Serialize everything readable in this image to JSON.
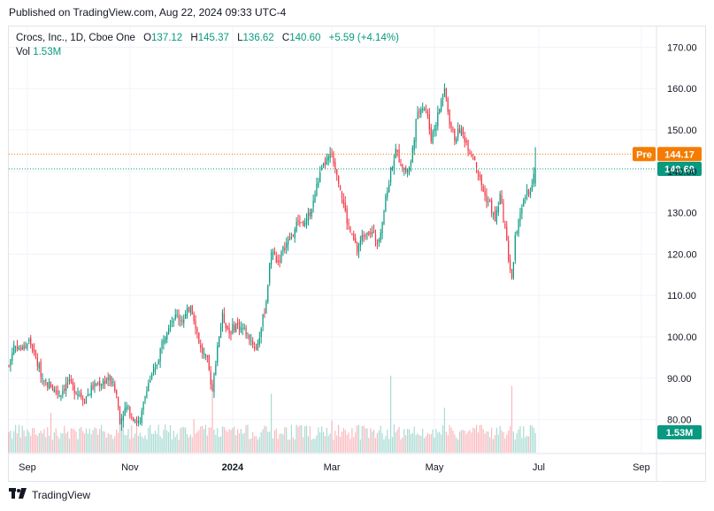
{
  "published": "Published on TradingView.com, Aug 22, 2024 09:33 UTC-4",
  "legend": {
    "symbol": "Crocs, Inc., 1D, Cboe One",
    "o_label": "O",
    "o": "137.12",
    "h_label": "H",
    "h": "145.37",
    "l_label": "L",
    "l": "136.62",
    "c_label": "C",
    "c": "140.60",
    "change": "+5.59 (+4.14%)",
    "vol_label": "Vol",
    "vol": "1.53M"
  },
  "footer": {
    "brand": "TradingView"
  },
  "colors": {
    "up": "#089981",
    "down": "#f23645",
    "pre": "#f57c00",
    "grid": "#f0f3fa",
    "axis_text": "#131722"
  },
  "chart_data": {
    "type": "candlestick",
    "title": "Crocs, Inc., 1D, Cboe One",
    "ylim": [
      72,
      175
    ],
    "yticks": [
      "170.00",
      "160.00",
      "150.00",
      "140.00",
      "130.00",
      "120.00",
      "110.00",
      "100.00",
      "90.00",
      "80.00"
    ],
    "xticks": [
      "Sep",
      "Nov",
      "2024",
      "Mar",
      "May",
      "Jul",
      "Sep"
    ],
    "xtick_days": [
      11,
      72,
      133,
      192,
      253,
      315,
      376
    ],
    "price_labels": {
      "pre_label": "Pre",
      "pre_value": "144.17",
      "last_value": "140.60",
      "volume_value": "1.53M"
    },
    "close_series": [
      {
        "day": 0,
        "close": 93
      },
      {
        "day": 3,
        "close": 98
      },
      {
        "day": 8,
        "close": 97
      },
      {
        "day": 12,
        "close": 99
      },
      {
        "day": 15,
        "close": 96
      },
      {
        "day": 20,
        "close": 90
      },
      {
        "day": 25,
        "close": 88
      },
      {
        "day": 30,
        "close": 86
      },
      {
        "day": 35,
        "close": 89
      },
      {
        "day": 40,
        "close": 87
      },
      {
        "day": 45,
        "close": 85
      },
      {
        "day": 50,
        "close": 88
      },
      {
        "day": 55,
        "close": 89
      },
      {
        "day": 60,
        "close": 90
      },
      {
        "day": 64,
        "close": 86
      },
      {
        "day": 66,
        "close": 80
      },
      {
        "day": 70,
        "close": 83
      },
      {
        "day": 75,
        "close": 80
      },
      {
        "day": 78,
        "close": 79
      },
      {
        "day": 82,
        "close": 88
      },
      {
        "day": 87,
        "close": 92
      },
      {
        "day": 92,
        "close": 100
      },
      {
        "day": 96,
        "close": 104
      },
      {
        "day": 100,
        "close": 105
      },
      {
        "day": 104,
        "close": 104
      },
      {
        "day": 108,
        "close": 108
      },
      {
        "day": 111,
        "close": 103
      },
      {
        "day": 114,
        "close": 97
      },
      {
        "day": 118,
        "close": 94
      },
      {
        "day": 121,
        "close": 87
      },
      {
        "day": 124,
        "close": 98
      },
      {
        "day": 127,
        "close": 105
      },
      {
        "day": 131,
        "close": 101
      },
      {
        "day": 135,
        "close": 103
      },
      {
        "day": 139,
        "close": 102
      },
      {
        "day": 143,
        "close": 100
      },
      {
        "day": 147,
        "close": 97
      },
      {
        "day": 150,
        "close": 102
      },
      {
        "day": 153,
        "close": 109
      },
      {
        "day": 156,
        "close": 121
      },
      {
        "day": 160,
        "close": 118
      },
      {
        "day": 164,
        "close": 122
      },
      {
        "day": 168,
        "close": 124
      },
      {
        "day": 172,
        "close": 128
      },
      {
        "day": 176,
        "close": 127
      },
      {
        "day": 180,
        "close": 131
      },
      {
        "day": 184,
        "close": 138
      },
      {
        "day": 188,
        "close": 142
      },
      {
        "day": 192,
        "close": 144
      },
      {
        "day": 195,
        "close": 140
      },
      {
        "day": 198,
        "close": 134
      },
      {
        "day": 201,
        "close": 128
      },
      {
        "day": 204,
        "close": 124
      },
      {
        "day": 207,
        "close": 121
      },
      {
        "day": 210,
        "close": 124
      },
      {
        "day": 213,
        "close": 126
      },
      {
        "day": 216,
        "close": 125
      },
      {
        "day": 219,
        "close": 123
      },
      {
        "day": 221,
        "close": 126
      },
      {
        "day": 224,
        "close": 133
      },
      {
        "day": 227,
        "close": 140
      },
      {
        "day": 230,
        "close": 145
      },
      {
        "day": 233,
        "close": 142
      },
      {
        "day": 236,
        "close": 140
      },
      {
        "day": 239,
        "close": 142
      },
      {
        "day": 242,
        "close": 152
      },
      {
        "day": 245,
        "close": 156
      },
      {
        "day": 248,
        "close": 155
      },
      {
        "day": 251,
        "close": 148
      },
      {
        "day": 254,
        "close": 152
      },
      {
        "day": 257,
        "close": 157
      },
      {
        "day": 259,
        "close": 160
      },
      {
        "day": 262,
        "close": 152
      },
      {
        "day": 265,
        "close": 148
      },
      {
        "day": 268,
        "close": 150
      },
      {
        "day": 271,
        "close": 148
      },
      {
        "day": 274,
        "close": 145
      },
      {
        "day": 277,
        "close": 143
      },
      {
        "day": 280,
        "close": 138
      },
      {
        "day": 283,
        "close": 134
      },
      {
        "day": 286,
        "close": 132
      },
      {
        "day": 289,
        "close": 128
      },
      {
        "day": 292,
        "close": 134
      },
      {
        "day": 295,
        "close": 126
      },
      {
        "day": 297,
        "close": 119
      },
      {
        "day": 299,
        "close": 114
      },
      {
        "day": 301,
        "close": 124
      },
      {
        "day": 304,
        "close": 129
      },
      {
        "day": 307,
        "close": 134
      },
      {
        "day": 310,
        "close": 136
      },
      {
        "day": 313,
        "close": 140.6
      }
    ],
    "volume_series": [
      {
        "day": 0,
        "vol": 1.6
      },
      {
        "day": 20,
        "vol": 1.5
      },
      {
        "day": 25,
        "vol": 3.1
      },
      {
        "day": 66,
        "vol": 3.4
      },
      {
        "day": 110,
        "vol": 2.6
      },
      {
        "day": 121,
        "vol": 5.3
      },
      {
        "day": 156,
        "vol": 4.6
      },
      {
        "day": 192,
        "vol": 2.5
      },
      {
        "day": 227,
        "vol": 6.0
      },
      {
        "day": 259,
        "vol": 3.5
      },
      {
        "day": 299,
        "vol": 5.2
      },
      {
        "day": 313,
        "vol": 1.53
      }
    ]
  }
}
